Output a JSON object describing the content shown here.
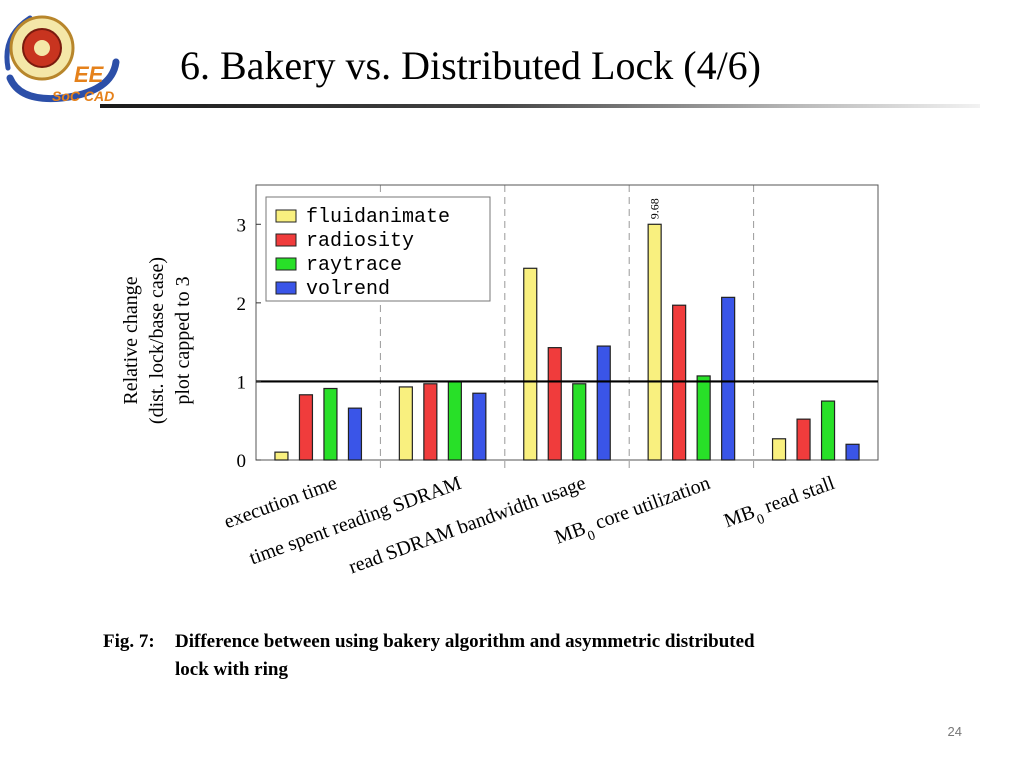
{
  "slide": {
    "title": "6. Bakery vs. Distributed Lock (4/6)",
    "page_number": "24",
    "logo_text": "EE",
    "logo_subtext": "SoC CAD"
  },
  "caption": {
    "label": "Fig. 7:",
    "line1": "Difference between using bakery algorithm and asymmetric distributed",
    "line2": "lock with ring"
  },
  "chart_data": {
    "type": "bar",
    "ylabel_lines": [
      "Relative change",
      "(dist. lock/base case)",
      "plot capped to 3"
    ],
    "ylim": [
      0,
      3.5
    ],
    "yticks": [
      0,
      1,
      2,
      3
    ],
    "reference_line": 1,
    "grid": "vertical dashed",
    "legend_position": "top-left",
    "categories": [
      {
        "label": "execution time"
      },
      {
        "label": "time spent reading SDRAM"
      },
      {
        "label": "read SDRAM bandwidth usage"
      },
      {
        "label": "core utilization",
        "prefix": "MB",
        "subscript": "0"
      },
      {
        "label": "read stall",
        "prefix": "MB",
        "subscript": "0"
      }
    ],
    "series": [
      {
        "name": "fluidanimate",
        "color": "#f9f07f",
        "values": [
          0.1,
          0.93,
          2.44,
          3.0,
          0.27
        ]
      },
      {
        "name": "radiosity",
        "color": "#f03c3c",
        "values": [
          0.83,
          0.97,
          1.43,
          1.97,
          0.52
        ]
      },
      {
        "name": "raytrace",
        "color": "#28e028",
        "values": [
          0.91,
          1.0,
          0.97,
          1.07,
          0.75
        ]
      },
      {
        "name": "volrend",
        "color": "#3a55e8",
        "values": [
          0.66,
          0.85,
          1.45,
          2.07,
          0.2
        ]
      }
    ],
    "annotations": [
      {
        "category_index": 3,
        "series_index": 0,
        "text": "9.68"
      }
    ]
  }
}
